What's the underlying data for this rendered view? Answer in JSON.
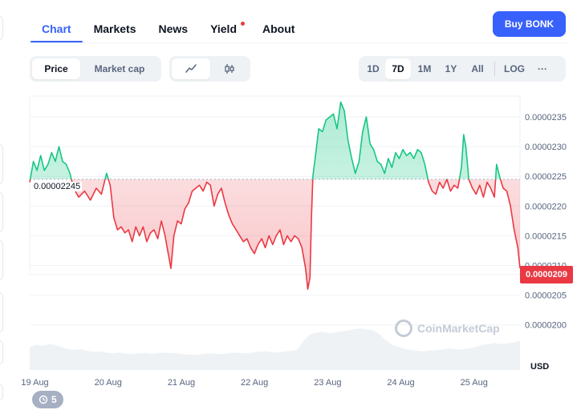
{
  "tabs": [
    {
      "label": "Chart",
      "active": true
    },
    {
      "label": "Markets"
    },
    {
      "label": "News"
    },
    {
      "label": "Yield",
      "badge": true
    },
    {
      "label": "About"
    }
  ],
  "buy_button": "Buy BONK",
  "metric_toggle": {
    "options": [
      "Price",
      "Market cap"
    ],
    "selected": "Price"
  },
  "chart_style_toggle": {
    "options": [
      "line-chart-icon",
      "candlestick-icon"
    ],
    "selected": "line-chart-icon"
  },
  "range_buttons": {
    "options": [
      "1D",
      "7D",
      "1M",
      "1Y",
      "All"
    ],
    "selected": "7D",
    "log_label": "LOG",
    "more_label": "···"
  },
  "baseline_label": "0.00002245",
  "current_price_label": "0.0000209",
  "currency_label": "USD",
  "watermark": "CoinMarketCap",
  "history_badge": "5",
  "colors": {
    "accent": "#3861fb",
    "up": "#16c784",
    "down": "#ea3943"
  },
  "chart_data": {
    "type": "line",
    "title": "",
    "xlabel": "",
    "ylabel": "USD",
    "y_ticks": [
      "0.0000235",
      "0.0000230",
      "0.0000225",
      "0.0000220",
      "0.0000215",
      "0.0000210",
      "0.0000205",
      "0.0000200"
    ],
    "x_ticks": [
      "19 Aug",
      "20 Aug",
      "21 Aug",
      "22 Aug",
      "23 Aug",
      "24 Aug",
      "25 Aug"
    ],
    "ylim": [
      1.97e-05,
      2.385e-05
    ],
    "baseline": 2.245e-05,
    "x_range_days": [
      18.95,
      25.65
    ],
    "series": [
      {
        "values": [
          [
            18.95,
            2.24e-05
          ],
          [
            19.0,
            2.275e-05
          ],
          [
            19.05,
            2.26e-05
          ],
          [
            19.1,
            2.285e-05
          ],
          [
            19.15,
            2.26e-05
          ],
          [
            19.2,
            2.27e-05
          ],
          [
            19.25,
            2.29e-05
          ],
          [
            19.3,
            2.275e-05
          ],
          [
            19.35,
            2.3e-05
          ],
          [
            19.4,
            2.275e-05
          ],
          [
            19.45,
            2.27e-05
          ],
          [
            19.5,
            2.255e-05
          ],
          [
            19.55,
            2.23e-05
          ],
          [
            19.62,
            2.215e-05
          ],
          [
            19.7,
            2.225e-05
          ],
          [
            19.78,
            2.21e-05
          ],
          [
            19.86,
            2.23e-05
          ],
          [
            19.93,
            2.22e-05
          ],
          [
            20.0,
            2.255e-05
          ],
          [
            20.05,
            2.235e-05
          ],
          [
            20.1,
            2.18e-05
          ],
          [
            20.15,
            2.16e-05
          ],
          [
            20.2,
            2.165e-05
          ],
          [
            20.25,
            2.155e-05
          ],
          [
            20.3,
            2.16e-05
          ],
          [
            20.35,
            2.14e-05
          ],
          [
            20.4,
            2.165e-05
          ],
          [
            20.45,
            2.15e-05
          ],
          [
            20.5,
            2.165e-05
          ],
          [
            20.55,
            2.14e-05
          ],
          [
            20.6,
            2.155e-05
          ],
          [
            20.65,
            2.16e-05
          ],
          [
            20.7,
            2.145e-05
          ],
          [
            20.75,
            2.175e-05
          ],
          [
            20.8,
            2.15e-05
          ],
          [
            20.85,
            2.115e-05
          ],
          [
            20.88,
            2.095e-05
          ],
          [
            20.92,
            2.15e-05
          ],
          [
            20.97,
            2.175e-05
          ],
          [
            21.02,
            2.17e-05
          ],
          [
            21.07,
            2.195e-05
          ],
          [
            21.12,
            2.205e-05
          ],
          [
            21.17,
            2.225e-05
          ],
          [
            21.22,
            2.23e-05
          ],
          [
            21.27,
            2.235e-05
          ],
          [
            21.32,
            2.225e-05
          ],
          [
            21.37,
            2.24e-05
          ],
          [
            21.42,
            2.235e-05
          ],
          [
            21.47,
            2.2e-05
          ],
          [
            21.52,
            2.22e-05
          ],
          [
            21.57,
            2.23e-05
          ],
          [
            21.62,
            2.205e-05
          ],
          [
            21.67,
            2.185e-05
          ],
          [
            21.72,
            2.17e-05
          ],
          [
            21.77,
            2.16e-05
          ],
          [
            21.82,
            2.15e-05
          ],
          [
            21.87,
            2.14e-05
          ],
          [
            21.92,
            2.145e-05
          ],
          [
            21.97,
            2.13e-05
          ],
          [
            22.02,
            2.12e-05
          ],
          [
            22.07,
            2.135e-05
          ],
          [
            22.12,
            2.145e-05
          ],
          [
            22.17,
            2.13e-05
          ],
          [
            22.22,
            2.15e-05
          ],
          [
            22.27,
            2.135e-05
          ],
          [
            22.32,
            2.15e-05
          ],
          [
            22.37,
            2.16e-05
          ],
          [
            22.42,
            2.135e-05
          ],
          [
            22.47,
            2.15e-05
          ],
          [
            22.52,
            2.14e-05
          ],
          [
            22.57,
            2.15e-05
          ],
          [
            22.62,
            2.145e-05
          ],
          [
            22.67,
            2.13e-05
          ],
          [
            22.72,
            2.095e-05
          ],
          [
            22.75,
            2.06e-05
          ],
          [
            22.78,
            2.08e-05
          ],
          [
            22.8,
            2.18e-05
          ],
          [
            22.82,
            2.25e-05
          ],
          [
            22.86,
            2.29e-05
          ],
          [
            22.9,
            2.33e-05
          ],
          [
            22.95,
            2.325e-05
          ],
          [
            23.0,
            2.345e-05
          ],
          [
            23.05,
            2.35e-05
          ],
          [
            23.1,
            2.355e-05
          ],
          [
            23.15,
            2.33e-05
          ],
          [
            23.2,
            2.375e-05
          ],
          [
            23.25,
            2.36e-05
          ],
          [
            23.3,
            2.31e-05
          ],
          [
            23.35,
            2.28e-05
          ],
          [
            23.4,
            2.255e-05
          ],
          [
            23.45,
            2.275e-05
          ],
          [
            23.5,
            2.325e-05
          ],
          [
            23.55,
            2.35e-05
          ],
          [
            23.6,
            2.305e-05
          ],
          [
            23.65,
            2.295e-05
          ],
          [
            23.7,
            2.275e-05
          ],
          [
            23.75,
            2.27e-05
          ],
          [
            23.8,
            2.255e-05
          ],
          [
            23.85,
            2.28e-05
          ],
          [
            23.9,
            2.265e-05
          ],
          [
            23.95,
            2.29e-05
          ],
          [
            24.0,
            2.28e-05
          ],
          [
            24.05,
            2.295e-05
          ],
          [
            24.1,
            2.285e-05
          ],
          [
            24.15,
            2.29e-05
          ],
          [
            24.2,
            2.28e-05
          ],
          [
            24.25,
            2.295e-05
          ],
          [
            24.3,
            2.29e-05
          ],
          [
            24.35,
            2.27e-05
          ],
          [
            24.4,
            2.24e-05
          ],
          [
            24.45,
            2.225e-05
          ],
          [
            24.5,
            2.22e-05
          ],
          [
            24.55,
            2.24e-05
          ],
          [
            24.6,
            2.23e-05
          ],
          [
            24.65,
            2.245e-05
          ],
          [
            24.7,
            2.225e-05
          ],
          [
            24.75,
            2.235e-05
          ],
          [
            24.8,
            2.23e-05
          ],
          [
            24.85,
            2.265e-05
          ],
          [
            24.88,
            2.32e-05
          ],
          [
            24.91,
            2.3e-05
          ],
          [
            24.95,
            2.245e-05
          ],
          [
            25.0,
            2.23e-05
          ],
          [
            25.05,
            2.22e-05
          ],
          [
            25.1,
            2.235e-05
          ],
          [
            25.15,
            2.215e-05
          ],
          [
            25.2,
            2.24e-05
          ],
          [
            25.25,
            2.23e-05
          ],
          [
            25.3,
            2.215e-05
          ],
          [
            25.33,
            2.27e-05
          ],
          [
            25.37,
            2.25e-05
          ],
          [
            25.42,
            2.23e-05
          ],
          [
            25.47,
            2.225e-05
          ],
          [
            25.52,
            2.2e-05
          ],
          [
            25.57,
            2.16e-05
          ],
          [
            25.62,
            2.13e-05
          ],
          [
            25.65,
            2.095e-05
          ]
        ]
      }
    ],
    "volume": [
      0.55,
      0.6,
      0.58,
      0.62,
      0.6,
      0.55,
      0.5,
      0.48,
      0.5,
      0.46,
      0.44,
      0.45,
      0.42,
      0.4,
      0.42,
      0.4,
      0.38,
      0.4,
      0.41,
      0.39,
      0.4,
      0.42,
      0.41,
      0.4,
      0.38,
      0.37,
      0.36,
      0.38,
      0.4,
      0.39,
      0.38,
      0.4,
      0.42,
      0.41,
      0.4,
      0.42,
      0.44,
      0.45,
      0.43,
      0.42,
      0.44,
      0.46,
      0.48,
      0.7,
      0.85,
      0.9,
      0.92,
      0.88,
      0.9,
      0.93,
      0.95,
      0.98,
      1.0,
      0.97,
      0.95,
      0.85,
      0.7,
      0.6,
      0.55,
      0.5,
      0.48,
      0.46,
      0.45,
      0.47,
      0.48,
      0.5,
      0.52,
      0.5,
      0.49,
      0.52,
      0.55,
      0.6,
      0.62,
      0.65,
      0.62,
      0.64,
      0.66,
      0.7
    ],
    "grid": true
  }
}
